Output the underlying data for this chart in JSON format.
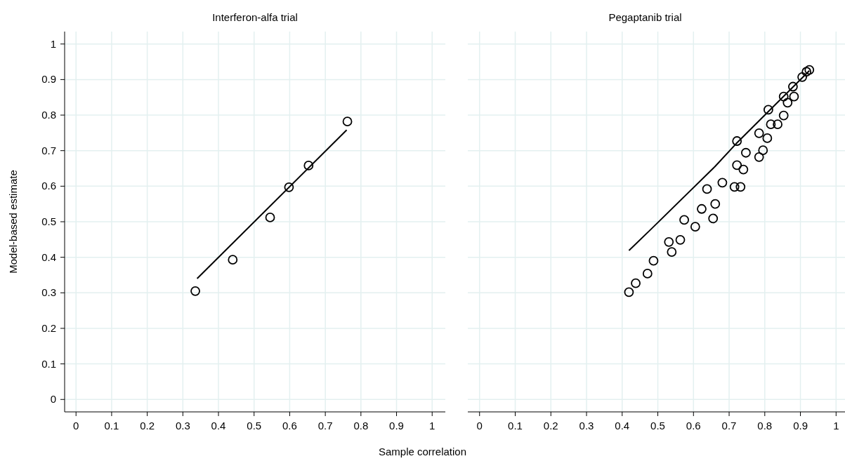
{
  "chart_data": [
    {
      "type": "scatter",
      "title": "Interferon-alfa trial",
      "xlabel": "Sample correlation",
      "ylabel": "Model-based estimate",
      "xlim": [
        -0.032,
        1.037
      ],
      "ylim": [
        -0.035,
        1.035
      ],
      "xticks": [
        0,
        0.1,
        0.2,
        0.3,
        0.4,
        0.5,
        0.6,
        0.7,
        0.8,
        0.9,
        1
      ],
      "yticks": [
        0,
        0.1,
        0.2,
        0.3,
        0.4,
        0.5,
        0.6,
        0.7,
        0.8,
        0.9,
        1
      ],
      "grid": true,
      "series": [
        {
          "marker": "circle",
          "color": "#000000",
          "x": [
            0.335,
            0.44,
            0.545,
            0.598,
            0.653,
            0.762
          ],
          "values": [
            0.305,
            0.393,
            0.512,
            0.597,
            0.658,
            0.782
          ]
        },
        {
          "type": "line",
          "color": "#000000",
          "line_style": "solid",
          "x": [
            0.34,
            0.76
          ],
          "values": [
            0.34,
            0.758
          ]
        }
      ]
    },
    {
      "type": "scatter",
      "title": "Pegaptanib trial",
      "xlim": [
        -0.033,
        1.025
      ],
      "ylim": [
        -0.035,
        1.035
      ],
      "xticks": [
        0,
        0.1,
        0.2,
        0.3,
        0.4,
        0.5,
        0.6,
        0.7,
        0.8,
        0.9,
        1
      ],
      "yticks": [
        0,
        0.1,
        0.2,
        0.3,
        0.4,
        0.5,
        0.6,
        0.7,
        0.8,
        0.9,
        1
      ],
      "grid": true,
      "tick_labels": "x",
      "series": [
        {
          "marker": "circle",
          "color": "#000000",
          "x": [
            0.419,
            0.438,
            0.471,
            0.488,
            0.531,
            0.539,
            0.563,
            0.574,
            0.605,
            0.623,
            0.638,
            0.655,
            0.661,
            0.681,
            0.715,
            0.732,
            0.722,
            0.722,
            0.74,
            0.747,
            0.784,
            0.784,
            0.795,
            0.807,
            0.81,
            0.817,
            0.836,
            0.853,
            0.853,
            0.864,
            0.882,
            0.879,
            0.905,
            0.917,
            0.925
          ],
          "values": [
            0.302,
            0.327,
            0.354,
            0.39,
            0.443,
            0.415,
            0.449,
            0.505,
            0.486,
            0.536,
            0.592,
            0.509,
            0.55,
            0.61,
            0.598,
            0.598,
            0.727,
            0.659,
            0.647,
            0.694,
            0.749,
            0.682,
            0.701,
            0.735,
            0.815,
            0.774,
            0.774,
            0.799,
            0.852,
            0.835,
            0.852,
            0.88,
            0.907,
            0.922,
            0.927
          ]
        },
        {
          "type": "line",
          "color": "#000000",
          "line_style": "solid",
          "x": [
            0.419,
            0.48,
            0.66,
            0.72,
            0.925
          ],
          "values": [
            0.419,
            0.478,
            0.655,
            0.72,
            0.925
          ]
        }
      ]
    }
  ]
}
